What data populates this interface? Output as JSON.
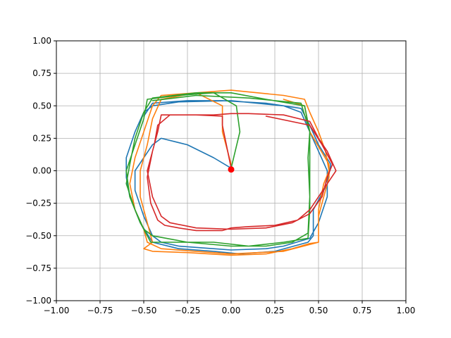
{
  "chart_data": {
    "type": "line",
    "title": "",
    "xlabel": "",
    "ylabel": "",
    "xlim": [
      -1,
      1
    ],
    "ylim": [
      -1,
      1
    ],
    "xticks": [
      "−1.00",
      "−0.75",
      "−0.50",
      "−0.25",
      "0.00",
      "0.25",
      "0.50",
      "0.75",
      "1.00"
    ],
    "yticks": [
      "−1.00",
      "−0.75",
      "−0.50",
      "−0.25",
      "0.00",
      "0.25",
      "0.50",
      "0.75",
      "1.00"
    ],
    "xtick_values": [
      -1,
      -0.75,
      -0.5,
      -0.25,
      0,
      0.25,
      0.5,
      0.75,
      1
    ],
    "ytick_values": [
      -1,
      -0.75,
      -0.5,
      -0.25,
      0,
      0.25,
      0.5,
      0.75,
      1
    ],
    "grid": true,
    "series": [
      {
        "color": "#1f77b4",
        "points": [
          [
            0.0,
            0.02
          ],
          [
            -0.1,
            0.1
          ],
          [
            -0.25,
            0.2
          ],
          [
            -0.4,
            0.25
          ],
          [
            -0.45,
            0.2
          ],
          [
            -0.5,
            0.1
          ],
          [
            -0.55,
            0.0
          ],
          [
            -0.55,
            -0.15
          ],
          [
            -0.5,
            -0.35
          ],
          [
            -0.45,
            -0.5
          ],
          [
            -0.4,
            -0.55
          ],
          [
            -0.3,
            -0.58
          ],
          [
            -0.1,
            -0.6
          ],
          [
            0.0,
            -0.61
          ],
          [
            0.2,
            -0.6
          ],
          [
            0.3,
            -0.58
          ],
          [
            0.45,
            -0.52
          ],
          [
            0.5,
            -0.4
          ],
          [
            0.55,
            -0.2
          ],
          [
            0.55,
            0.0
          ],
          [
            0.5,
            0.15
          ],
          [
            0.45,
            0.3
          ],
          [
            0.4,
            0.45
          ],
          [
            0.3,
            0.5
          ],
          [
            0.0,
            0.54
          ],
          [
            -0.3,
            0.53
          ],
          [
            -0.45,
            0.5
          ],
          [
            -0.5,
            0.45
          ],
          [
            -0.55,
            0.3
          ],
          [
            -0.6,
            0.1
          ],
          [
            -0.6,
            -0.05
          ],
          [
            -0.58,
            -0.2
          ],
          [
            -0.52,
            -0.4
          ],
          [
            -0.45,
            -0.55
          ],
          [
            -0.3,
            -0.6
          ],
          [
            -0.1,
            -0.62
          ],
          [
            0.05,
            -0.64
          ],
          [
            0.25,
            -0.62
          ],
          [
            0.44,
            -0.55
          ],
          [
            0.47,
            -0.5
          ],
          [
            0.47,
            -0.3
          ],
          [
            0.55,
            -0.1
          ],
          [
            0.57,
            0.05
          ],
          [
            0.5,
            0.2
          ],
          [
            0.45,
            0.35
          ],
          [
            0.4,
            0.48
          ],
          [
            0.2,
            0.52
          ],
          [
            -0.05,
            0.54
          ],
          [
            -0.25,
            0.54
          ],
          [
            -0.45,
            0.52
          ],
          [
            -0.5,
            0.42
          ]
        ]
      },
      {
        "color": "#ff7f0e",
        "points": [
          [
            0.0,
            0.05
          ],
          [
            -0.05,
            0.3
          ],
          [
            -0.05,
            0.5
          ],
          [
            -0.2,
            0.6
          ],
          [
            -0.4,
            0.55
          ],
          [
            -0.45,
            0.4
          ],
          [
            -0.48,
            0.2
          ],
          [
            -0.52,
            0.0
          ],
          [
            -0.52,
            -0.2
          ],
          [
            -0.48,
            -0.4
          ],
          [
            -0.45,
            -0.55
          ],
          [
            -0.48,
            -0.58
          ],
          [
            -0.5,
            -0.6
          ],
          [
            -0.45,
            -0.62
          ],
          [
            -0.25,
            -0.63
          ],
          [
            0.0,
            -0.65
          ],
          [
            0.2,
            -0.64
          ],
          [
            0.35,
            -0.6
          ],
          [
            0.45,
            -0.56
          ],
          [
            0.5,
            -0.55
          ],
          [
            0.5,
            -0.3
          ],
          [
            0.53,
            -0.1
          ],
          [
            0.56,
            0.0
          ],
          [
            0.54,
            0.15
          ],
          [
            0.5,
            0.3
          ],
          [
            0.45,
            0.45
          ],
          [
            0.42,
            0.55
          ],
          [
            0.3,
            0.58
          ],
          [
            0.0,
            0.62
          ],
          [
            -0.2,
            0.6
          ],
          [
            -0.4,
            0.58
          ],
          [
            -0.45,
            0.5
          ],
          [
            -0.5,
            0.3
          ],
          [
            -0.55,
            0.1
          ],
          [
            -0.58,
            -0.1
          ],
          [
            -0.55,
            -0.3
          ],
          [
            -0.5,
            -0.45
          ],
          [
            -0.48,
            -0.55
          ],
          [
            -0.4,
            -0.6
          ],
          [
            -0.2,
            -0.62
          ],
          [
            0.0,
            -0.64
          ],
          [
            0.3,
            -0.62
          ],
          [
            0.5,
            -0.55
          ],
          [
            0.5,
            -0.35
          ],
          [
            0.56,
            -0.05
          ],
          [
            0.56,
            0.05
          ],
          [
            0.45,
            0.3
          ],
          [
            0.42,
            0.5
          ],
          [
            0.3,
            0.55
          ]
        ]
      },
      {
        "color": "#2ca02c",
        "points": [
          [
            0.0,
            0.02
          ],
          [
            0.05,
            0.3
          ],
          [
            0.03,
            0.5
          ],
          [
            -0.1,
            0.6
          ],
          [
            -0.3,
            0.58
          ],
          [
            -0.48,
            0.55
          ],
          [
            -0.5,
            0.4
          ],
          [
            -0.55,
            0.2
          ],
          [
            -0.6,
            0.0
          ],
          [
            -0.58,
            -0.2
          ],
          [
            -0.52,
            -0.4
          ],
          [
            -0.48,
            -0.5
          ],
          [
            -0.46,
            -0.55
          ],
          [
            -0.3,
            -0.55
          ],
          [
            -0.1,
            -0.55
          ],
          [
            0.1,
            -0.58
          ],
          [
            0.3,
            -0.55
          ],
          [
            0.44,
            -0.52
          ],
          [
            0.45,
            -0.3
          ],
          [
            0.45,
            0.0
          ],
          [
            0.45,
            0.3
          ],
          [
            0.42,
            0.5
          ],
          [
            0.2,
            0.55
          ],
          [
            0.0,
            0.6
          ],
          [
            -0.2,
            0.6
          ],
          [
            -0.45,
            0.56
          ],
          [
            -0.5,
            0.45
          ],
          [
            -0.55,
            0.25
          ],
          [
            -0.58,
            0.05
          ],
          [
            -0.6,
            -0.1
          ],
          [
            -0.55,
            -0.3
          ],
          [
            -0.5,
            -0.45
          ],
          [
            -0.45,
            -0.5
          ],
          [
            -0.25,
            -0.55
          ],
          [
            0.0,
            -0.58
          ],
          [
            0.2,
            -0.58
          ],
          [
            0.35,
            -0.55
          ],
          [
            0.44,
            -0.48
          ],
          [
            0.45,
            -0.2
          ],
          [
            0.44,
            0.1
          ],
          [
            0.45,
            0.3
          ],
          [
            0.4,
            0.52
          ],
          [
            0.1,
            0.56
          ],
          [
            -0.2,
            0.58
          ],
          [
            -0.45,
            0.54
          ]
        ]
      },
      {
        "color": "#d62728",
        "points": [
          [
            0.0,
            0.02
          ],
          [
            -0.05,
            0.35
          ],
          [
            -0.05,
            0.42
          ],
          [
            -0.2,
            0.43
          ],
          [
            -0.4,
            0.43
          ],
          [
            -0.42,
            0.3
          ],
          [
            -0.45,
            0.15
          ],
          [
            -0.48,
            -0.05
          ],
          [
            -0.46,
            -0.25
          ],
          [
            -0.42,
            -0.38
          ],
          [
            -0.38,
            -0.42
          ],
          [
            -0.3,
            -0.44
          ],
          [
            -0.2,
            -0.46
          ],
          [
            -0.05,
            -0.46
          ],
          [
            0.0,
            -0.44
          ],
          [
            0.1,
            -0.43
          ],
          [
            0.25,
            -0.42
          ],
          [
            0.38,
            -0.38
          ],
          [
            0.45,
            -0.3
          ],
          [
            0.5,
            -0.2
          ],
          [
            0.55,
            -0.1
          ],
          [
            0.6,
            0.0
          ],
          [
            0.55,
            0.15
          ],
          [
            0.5,
            0.25
          ],
          [
            0.45,
            0.38
          ],
          [
            0.3,
            0.43
          ],
          [
            0.1,
            0.44
          ],
          [
            0.0,
            0.44
          ],
          [
            -0.1,
            0.43
          ],
          [
            -0.35,
            0.43
          ],
          [
            -0.42,
            0.35
          ],
          [
            -0.44,
            0.2
          ],
          [
            -0.48,
            0.0
          ],
          [
            -0.45,
            -0.2
          ],
          [
            -0.4,
            -0.35
          ],
          [
            -0.35,
            -0.4
          ],
          [
            -0.2,
            -0.44
          ],
          [
            0.0,
            -0.45
          ],
          [
            0.2,
            -0.44
          ],
          [
            0.35,
            -0.4
          ],
          [
            0.45,
            -0.33
          ],
          [
            0.52,
            -0.2
          ],
          [
            0.55,
            -0.05
          ],
          [
            0.58,
            0.05
          ],
          [
            0.52,
            0.2
          ],
          [
            0.45,
            0.35
          ],
          [
            0.2,
            0.42
          ]
        ]
      }
    ],
    "marker": {
      "x": 0.0,
      "y": 0.01,
      "color": "#ff0000"
    }
  }
}
